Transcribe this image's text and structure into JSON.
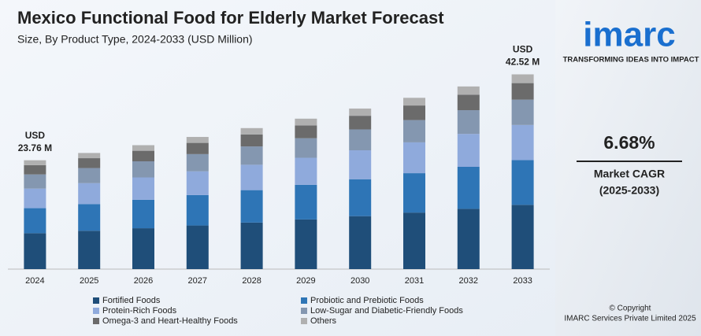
{
  "chart_data": {
    "type": "stacked_bar",
    "title": "Mexico Functional Food for Elderly Market Forecast",
    "subtitle": "Size, By Product Type, 2024-2033 (USD Million)",
    "categories": [
      "2024",
      "2025",
      "2026",
      "2027",
      "2028",
      "2029",
      "2030",
      "2031",
      "2032",
      "2033"
    ],
    "series": [
      {
        "name": "Fortified Foods",
        "color": "#1f4e79",
        "values": [
          7.84,
          8.37,
          8.92,
          9.52,
          10.16,
          10.84,
          11.56,
          12.34,
          13.16,
          14.03
        ]
      },
      {
        "name": "Probiotic and Prebiotic Foods",
        "color": "#2e75b6",
        "values": [
          5.46,
          5.83,
          6.22,
          6.64,
          7.08,
          7.55,
          8.06,
          8.6,
          9.17,
          9.78
        ]
      },
      {
        "name": "Protein-Rich Foods",
        "color": "#8faadc",
        "values": [
          4.28,
          4.56,
          4.87,
          5.19,
          5.54,
          5.91,
          6.31,
          6.73,
          7.18,
          7.65
        ]
      },
      {
        "name": "Low-Sugar and Diabetic-Friendly Foods",
        "color": "#8497b0",
        "values": [
          3.09,
          3.3,
          3.52,
          3.75,
          4.0,
          4.27,
          4.56,
          4.86,
          5.18,
          5.53
        ]
      },
      {
        "name": "Omega-3 and Heart-Healthy Foods",
        "color": "#6b6b6b",
        "values": [
          2.02,
          2.15,
          2.3,
          2.45,
          2.62,
          2.79,
          2.98,
          3.18,
          3.39,
          3.61
        ]
      },
      {
        "name": "Others",
        "color": "#b0b0b0",
        "values": [
          1.07,
          1.14,
          1.22,
          1.3,
          1.38,
          1.48,
          1.58,
          1.68,
          1.79,
          1.91
        ]
      }
    ],
    "ylim": [
      0,
      45
    ],
    "annotations": [
      [
        "USD",
        "23.76 M"
      ],
      [
        "USD",
        "42.52 M"
      ]
    ],
    "side_panel": {
      "logo": "imarc",
      "tagline": "TRANSFORMING IDEAS INTO IMPACT",
      "cagr": "6.68%",
      "cagr_label": "Market CAGR",
      "cagr_period": "(2025-2033)",
      "copyright": "© Copyright",
      "company": "IMARC Services Private Limited 2025"
    }
  }
}
